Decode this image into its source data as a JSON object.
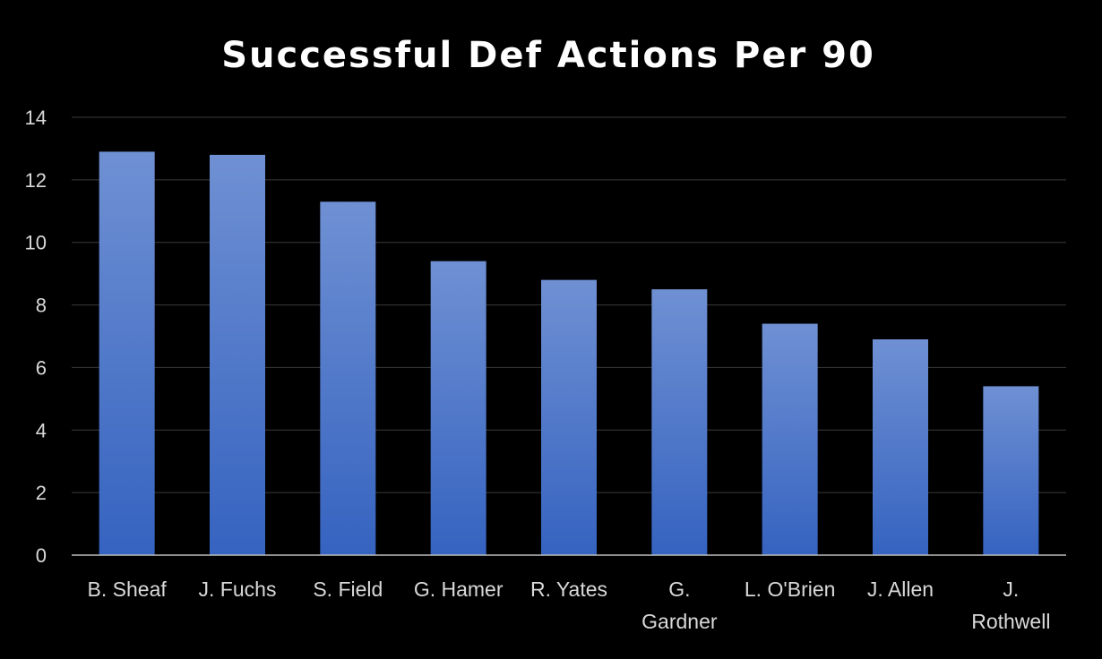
{
  "chart_data": {
    "type": "bar",
    "title": "Successful Def Actions Per 90",
    "categories": [
      "B. Sheaf",
      "J. Fuchs",
      "S. Field",
      "G. Hamer",
      "R. Yates",
      "G. Gardner",
      "L. O'Brien",
      "J. Allen",
      "J. Rothwell"
    ],
    "category_lines": [
      [
        "B. Sheaf"
      ],
      [
        "J. Fuchs"
      ],
      [
        "S. Field"
      ],
      [
        "G. Hamer"
      ],
      [
        "R. Yates"
      ],
      [
        "G.",
        "Gardner"
      ],
      [
        "L. O'Brien"
      ],
      [
        "J. Allen"
      ],
      [
        "J.",
        "Rothwell"
      ]
    ],
    "values": [
      12.9,
      12.8,
      11.3,
      9.4,
      8.8,
      8.5,
      7.4,
      6.9,
      5.4
    ],
    "xlabel": "",
    "ylabel": "",
    "ylim": [
      0,
      14
    ],
    "yticks": [
      0,
      2,
      4,
      6,
      8,
      10,
      12,
      14
    ],
    "grid": true,
    "legend": "none"
  },
  "colors": {
    "background": "#000000",
    "bar_top": "#6f90d3",
    "bar_bottom": "#3563c0",
    "text": "#d9d9d9",
    "title": "#ffffff",
    "grid": "#3a3a3a",
    "axis": "#bfbfbf"
  }
}
